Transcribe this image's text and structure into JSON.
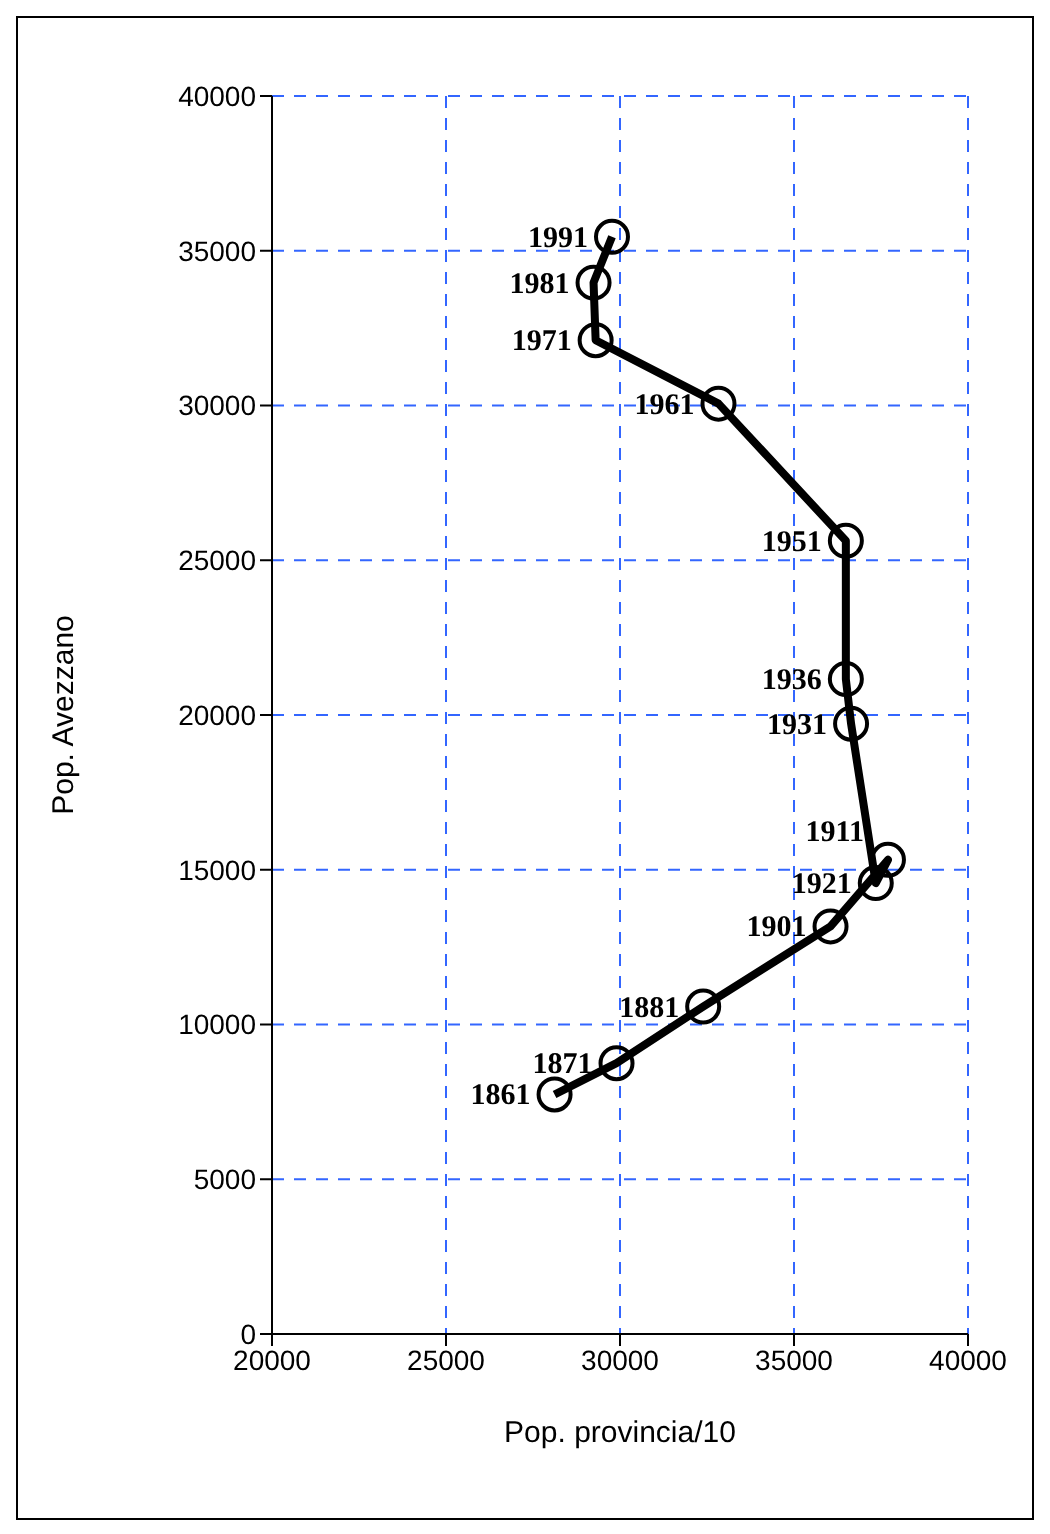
{
  "chart_data": {
    "type": "line",
    "xlabel": "Pop. provincia/10",
    "ylabel": "Pop. Avezzano",
    "x": [
      28120,
      29900,
      32390,
      36050,
      37700,
      37350,
      36640,
      36490,
      36490,
      32830,
      29300,
      29240,
      29770
    ],
    "series": [
      {
        "color": "#000000",
        "values": [
          7740,
          8750,
          10580,
          13170,
          15320,
          14570,
          19720,
          21160,
          25630,
          30060,
          32110,
          33970,
          35450
        ]
      }
    ],
    "annotations": [
      {
        "text": "1861",
        "x": 28120,
        "y": 7740
      },
      {
        "text": "1871",
        "x": 29900,
        "y": 8750
      },
      {
        "text": "1881",
        "x": 32390,
        "y": 10580
      },
      {
        "text": "1901",
        "x": 36050,
        "y": 13170
      },
      {
        "text": "1911",
        "x": 37700,
        "y": 15320
      },
      {
        "text": "1921",
        "x": 37350,
        "y": 14570
      },
      {
        "text": "1931",
        "x": 36640,
        "y": 19720
      },
      {
        "text": "1936",
        "x": 36490,
        "y": 21160
      },
      {
        "text": "1951",
        "x": 36490,
        "y": 25630
      },
      {
        "text": "1961",
        "x": 32830,
        "y": 30060
      },
      {
        "text": "1971",
        "x": 29300,
        "y": 32110
      },
      {
        "text": "1981",
        "x": 29240,
        "y": 33970
      },
      {
        "text": "1991",
        "x": 29770,
        "y": 35450
      }
    ],
    "xlim": [
      20000,
      40000
    ],
    "xticks": [
      20000,
      25000,
      30000,
      35000,
      40000
    ],
    "ylim": [
      0,
      40000
    ],
    "yticks": [
      0,
      5000,
      10000,
      15000,
      20000,
      25000,
      30000,
      35000,
      40000
    ],
    "grid": true,
    "marker": "circle",
    "line_style": "solid"
  }
}
